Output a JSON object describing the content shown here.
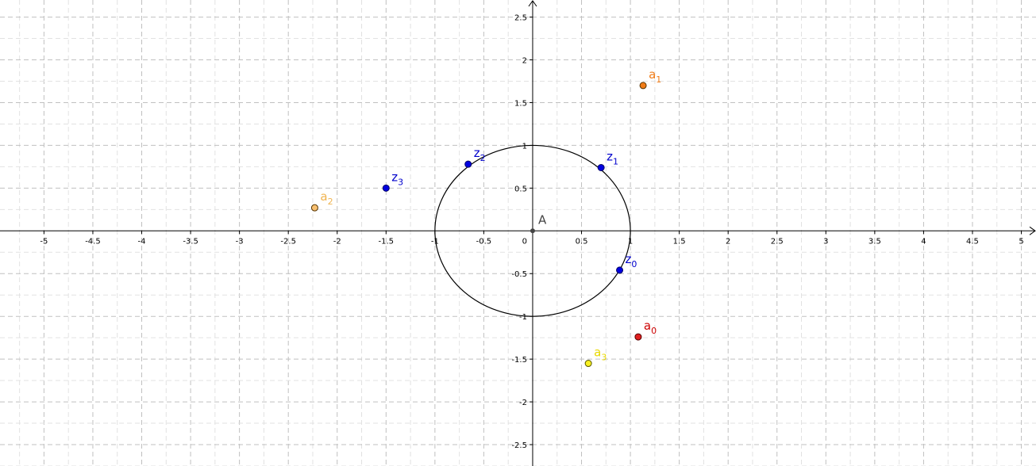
{
  "chart_data": {
    "type": "scatter",
    "title": "",
    "xlabel": "",
    "ylabel": "",
    "xlim": [
      -5.45,
      5.15
    ],
    "ylim": [
      -2.75,
      2.7
    ],
    "grid": true,
    "x_ticks": [
      -5,
      -4.5,
      -4,
      -3.5,
      -3,
      -2.5,
      -2,
      -1.5,
      -1,
      -0.5,
      0.5,
      1,
      1.5,
      2,
      2.5,
      3,
      3.5,
      4,
      4.5,
      5
    ],
    "x_tick_labels": [
      "-5",
      "-4.5",
      "-4",
      "-3.5",
      "-3",
      "-2.5",
      "-2",
      "-1.5",
      "-1",
      "-0.5",
      "0.5",
      "1",
      "1.5",
      "2",
      "2.5",
      "3",
      "3.5",
      "4",
      "4.5",
      "5"
    ],
    "y_ticks": [
      2.5,
      2,
      1.5,
      1,
      0.5,
      -0.5,
      -1,
      -1.5,
      -2,
      -2.5
    ],
    "y_tick_labels": [
      "2.5",
      "2",
      "1.5",
      "1",
      "0.5",
      "-0.5",
      "-1",
      "-1.5",
      "-2",
      "-2.5"
    ],
    "origin_label": "0",
    "circle": {
      "center": [
        0,
        0
      ],
      "radius": 1,
      "color": "#000000"
    },
    "points": [
      {
        "name": "A",
        "base": "A",
        "sub": "",
        "x": 0,
        "y": 0,
        "color": "#444444",
        "label_color": "#444444",
        "outline": "#444444",
        "radius_px": 2.5
      },
      {
        "name": "z_0",
        "base": "z",
        "sub": "0",
        "x": 0.89,
        "y": -0.46,
        "color": "#0000e0",
        "label_color": "#0000cc",
        "outline": "#000066",
        "radius_px": 4
      },
      {
        "name": "z_1",
        "base": "z",
        "sub": "1",
        "x": 0.7,
        "y": 0.74,
        "color": "#0000e0",
        "label_color": "#0000cc",
        "outline": "#000066",
        "radius_px": 4
      },
      {
        "name": "z_2",
        "base": "z",
        "sub": "2",
        "x": -0.66,
        "y": 0.78,
        "color": "#0000e0",
        "label_color": "#0000cc",
        "outline": "#000066",
        "radius_px": 4
      },
      {
        "name": "z_3",
        "base": "z",
        "sub": "3",
        "x": -1.5,
        "y": 0.5,
        "color": "#0000e0",
        "label_color": "#0000cc",
        "outline": "#000066",
        "radius_px": 4
      },
      {
        "name": "a_0",
        "base": "a",
        "sub": "0",
        "x": 1.08,
        "y": -1.24,
        "color": "#e02020",
        "label_color": "#cc0000",
        "outline": "#550000",
        "radius_px": 4
      },
      {
        "name": "a_1",
        "base": "a",
        "sub": "1",
        "x": 1.13,
        "y": 1.7,
        "color": "#f07c18",
        "label_color": "#f07c18",
        "outline": "#553300",
        "radius_px": 4
      },
      {
        "name": "a_2",
        "base": "a",
        "sub": "2",
        "x": -2.23,
        "y": 0.27,
        "color": "#f8c070",
        "label_color": "#f0b450",
        "outline": "#553300",
        "radius_px": 4
      },
      {
        "name": "a_3",
        "base": "a",
        "sub": "3",
        "x": 0.57,
        "y": -1.55,
        "color": "#f8f020",
        "label_color": "#e8d800",
        "outline": "#555500",
        "radius_px": 4
      }
    ]
  }
}
